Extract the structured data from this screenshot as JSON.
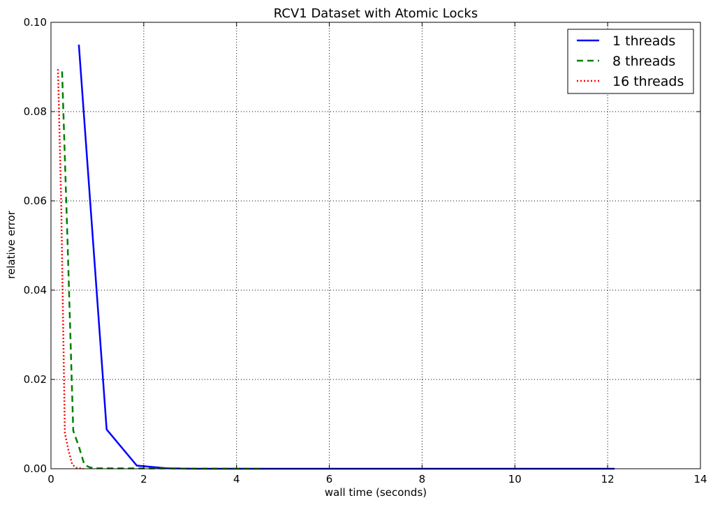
{
  "chart_data": {
    "type": "line",
    "title": "RCV1 Dataset with Atomic Locks",
    "xlabel": "wall time (seconds)",
    "ylabel": "relative error",
    "xlim": [
      0,
      14
    ],
    "ylim": [
      0,
      0.1
    ],
    "xticks": [
      0,
      2,
      4,
      6,
      8,
      10,
      12,
      14
    ],
    "xtick_labels": [
      "0",
      "2",
      "4",
      "6",
      "8",
      "10",
      "12",
      "14"
    ],
    "yticks": [
      0,
      0.02,
      0.04,
      0.06,
      0.08,
      0.1
    ],
    "ytick_labels": [
      "0.00",
      "0.02",
      "0.04",
      "0.06",
      "0.08",
      "0.10"
    ],
    "grid": true,
    "legend_position": "top-right",
    "series": [
      {
        "name": "1 threads",
        "color": "#0000ff",
        "dash": "solid",
        "x": [
          0.6,
          1.2,
          1.85,
          2.5,
          3.1,
          12.15
        ],
        "y": [
          0.095,
          0.0088,
          0.0007,
          0.0001,
          0.0,
          0.0
        ]
      },
      {
        "name": "8 threads",
        "color": "#008000",
        "dash": "dashed",
        "x": [
          0.24,
          0.36,
          0.48,
          0.6,
          0.72,
          0.84,
          1.0,
          4.6
        ],
        "y": [
          0.089,
          0.05,
          0.0085,
          0.005,
          0.0009,
          0.0003,
          0.0001,
          0.0
        ]
      },
      {
        "name": "16 threads",
        "color": "#ff0000",
        "dash": "dotted",
        "x": [
          0.15,
          0.22,
          0.3,
          0.38,
          0.46,
          0.55,
          0.7
        ],
        "y": [
          0.0895,
          0.06,
          0.008,
          0.004,
          0.0009,
          0.0002,
          0.0
        ]
      }
    ]
  }
}
